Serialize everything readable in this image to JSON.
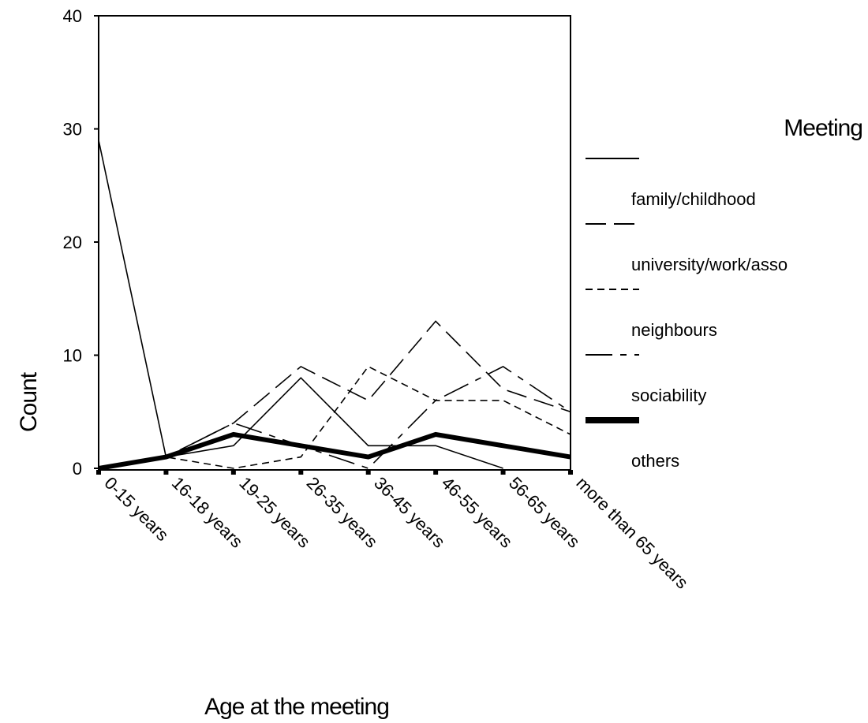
{
  "chart_data": {
    "type": "line",
    "title": "",
    "xlabel": "Age at the meeting",
    "ylabel": "Count",
    "ylim": [
      0,
      40
    ],
    "yticks": [
      "0",
      "10",
      "20",
      "30",
      "40"
    ],
    "categories": [
      "0-15 years",
      "16-18 years",
      "19-25 years",
      "26-35 years",
      "36-45 years",
      "46-55 years",
      "56-65 years",
      "more than 65 years"
    ],
    "legend_title": "Meeting",
    "legend_position": "right",
    "grid": false,
    "series": [
      {
        "name": "family/childhood",
        "style": "solid-thin",
        "values": [
          29,
          1,
          2,
          8,
          2,
          2,
          0,
          null
        ]
      },
      {
        "name": "university/work/asso",
        "style": "long-dash",
        "values": [
          0,
          1,
          4,
          9,
          6,
          13,
          7,
          5
        ]
      },
      {
        "name": "neighbours",
        "style": "short-dash",
        "values": [
          0,
          1,
          0,
          1,
          9,
          6,
          6,
          3
        ]
      },
      {
        "name": "sociability",
        "style": "dash-dot",
        "values": [
          0,
          1,
          4,
          2,
          0,
          6,
          9,
          5
        ]
      },
      {
        "name": "others",
        "style": "thick-solid",
        "values": [
          0,
          1,
          3,
          2,
          1,
          3,
          2,
          1
        ]
      }
    ]
  }
}
